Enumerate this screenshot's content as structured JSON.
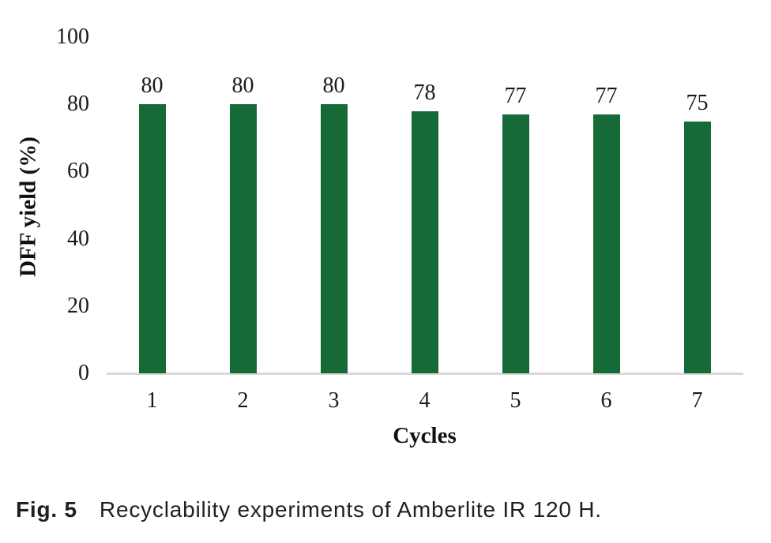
{
  "chart_data": {
    "type": "bar",
    "title": "",
    "categories": [
      "1",
      "2",
      "3",
      "4",
      "5",
      "6",
      "7"
    ],
    "values": [
      80,
      80,
      80,
      78,
      77,
      77,
      75
    ],
    "data_labels": [
      "80",
      "80",
      "80",
      "78",
      "77",
      "77",
      "75"
    ],
    "xlabel": "Cycles",
    "ylabel": "DFF yield (%)",
    "ylim": [
      0,
      100
    ],
    "yticks": [
      0,
      20,
      40,
      60,
      80,
      100
    ],
    "grid": false,
    "legend": false,
    "bar_color": "#166a38",
    "axis_line_color": "#d9d9d9"
  },
  "caption": {
    "label": "Fig. 5",
    "text": "Recyclability experiments of Amberlite IR 120 H."
  }
}
